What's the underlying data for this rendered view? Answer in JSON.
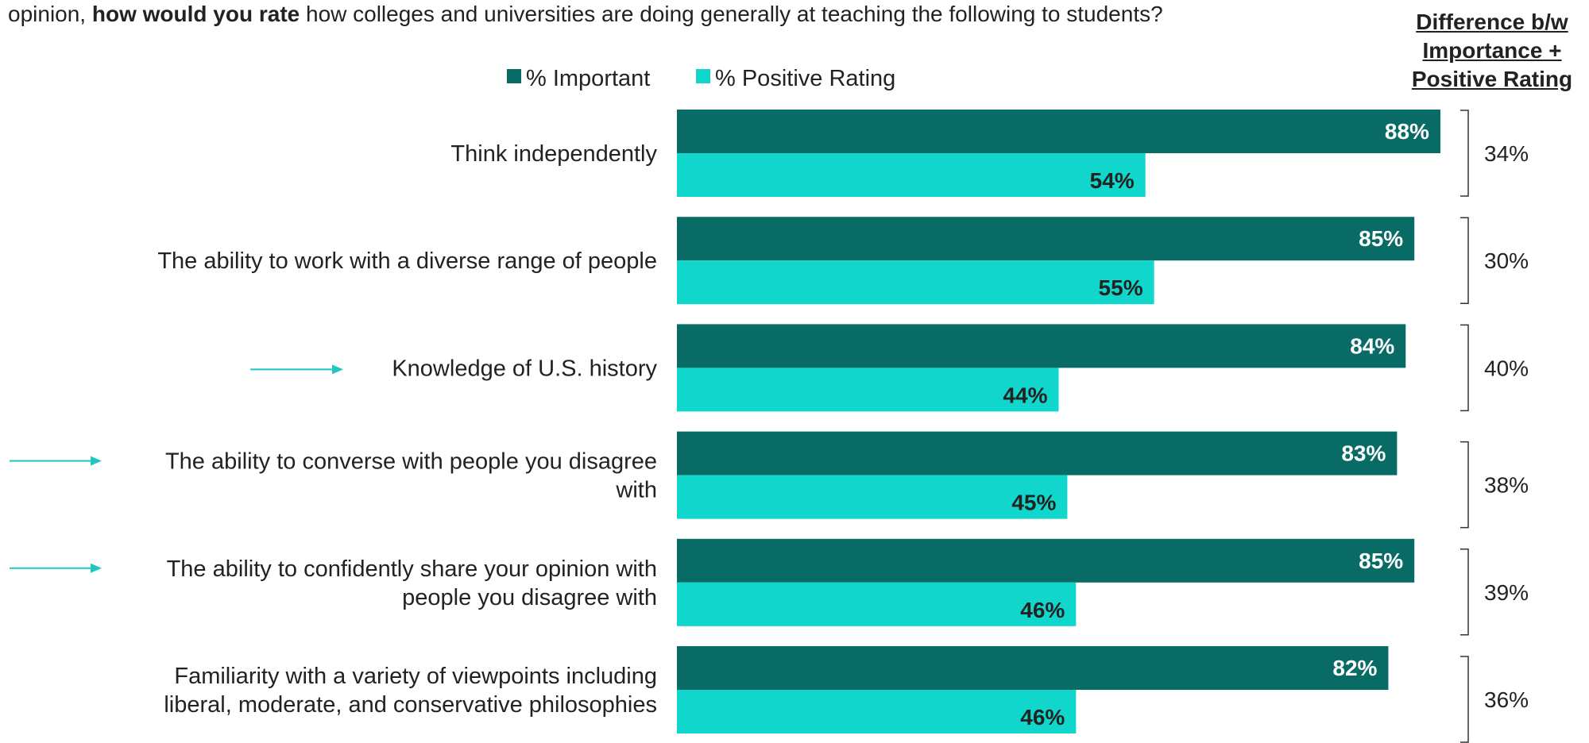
{
  "question": {
    "prefix": "opinion, ",
    "bold": "how would you rate",
    "suffix": " how colleges and universities are doing generally at teaching the following to students?"
  },
  "difference_header": [
    "Difference b/w",
    "Importance +",
    "Positive Rating"
  ],
  "colors": {
    "important": "#086b66",
    "positive": "#11d6cc",
    "arrow": "#20c6c0",
    "bracket": "#333333"
  },
  "chart_data": {
    "type": "bar",
    "orientation": "horizontal",
    "categories": [
      [
        "Think independently"
      ],
      [
        "The ability to work with a diverse range of people"
      ],
      [
        "Knowledge of U.S. history"
      ],
      [
        "The ability to converse with people you disagree",
        "with"
      ],
      [
        "The ability to confidently share your opinion with",
        "people you disagree with"
      ],
      [
        "Familiarity with a variety of viewpoints including",
        "liberal, moderate, and conservative philosophies"
      ]
    ],
    "series": [
      {
        "name": "% Important",
        "values": [
          88,
          85,
          84,
          83,
          85,
          82
        ],
        "labels": [
          "88%",
          "85%",
          "84%",
          "83%",
          "85%",
          "82%"
        ]
      },
      {
        "name": "% Positive Rating",
        "values": [
          54,
          55,
          44,
          45,
          46,
          46
        ],
        "labels": [
          "54%",
          "55%",
          "44%",
          "45%",
          "46%",
          "46%"
        ]
      }
    ],
    "difference": [
      "34%",
      "30%",
      "40%",
      "38%",
      "39%",
      "36%"
    ],
    "highlighted_categories": [
      2,
      3,
      4
    ],
    "xlim": [
      0,
      100
    ],
    "legend_position": "top"
  }
}
